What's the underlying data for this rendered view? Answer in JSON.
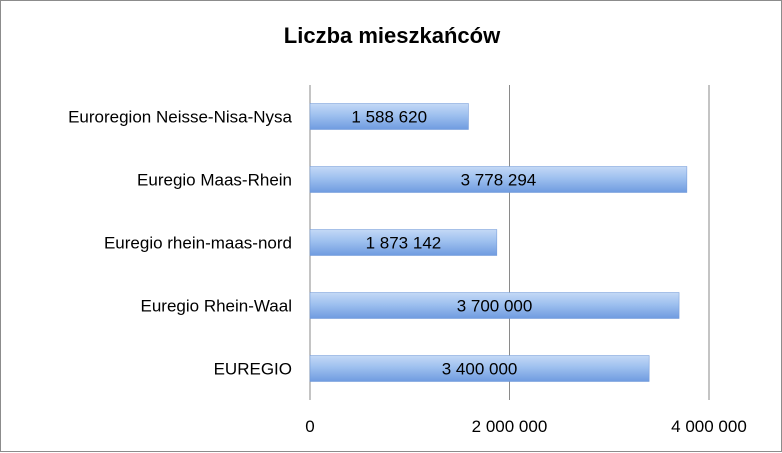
{
  "chart_data": {
    "type": "bar",
    "orientation": "horizontal",
    "title": "Liczba mieszkańców",
    "categories": [
      "Euroregion Neisse-Nisa-Nysa",
      "Euregio Maas-Rhein",
      "Euregio rhein-maas-nord",
      "Euregio Rhein-Waal",
      "EUREGIO"
    ],
    "values": [
      1588620,
      3778294,
      1873142,
      3700000,
      3400000
    ],
    "data_labels": [
      "1 588 620",
      "3 778 294",
      "1 873 142",
      "3 700 000",
      "3 400 000"
    ],
    "xticks": [
      0,
      2000000,
      4000000
    ],
    "xtick_labels": [
      "0",
      "2 000 000",
      "4 000 000"
    ],
    "xlim": [
      0,
      4000000
    ],
    "grid": true,
    "legend": "none",
    "bar_color": "#8db3ea"
  }
}
